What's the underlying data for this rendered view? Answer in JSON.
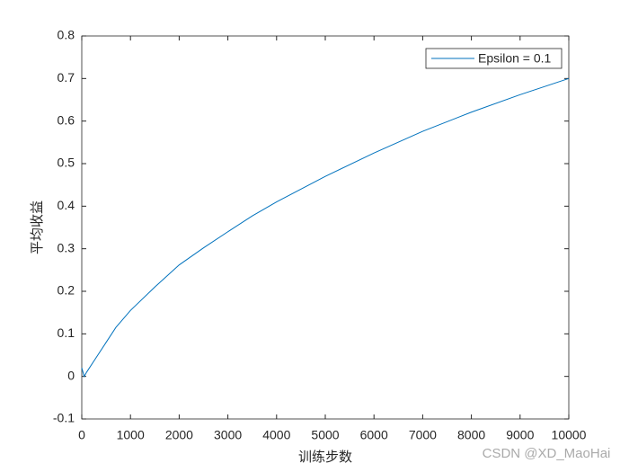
{
  "chart_data": {
    "type": "line",
    "x": [
      0,
      50,
      100,
      300,
      500,
      700,
      1000,
      1500,
      2000,
      2500,
      3000,
      3500,
      4000,
      5000,
      6000,
      7000,
      8000,
      9000,
      10000
    ],
    "series": [
      {
        "name": "Epsilon = 0.1",
        "color": "#0072bd",
        "values": [
          0.02,
          0.0,
          0.01,
          0.045,
          0.08,
          0.115,
          0.155,
          0.21,
          0.262,
          0.302,
          0.34,
          0.377,
          0.41,
          0.47,
          0.525,
          0.576,
          0.621,
          0.662,
          0.7
        ]
      }
    ],
    "xlabel": "训练步数",
    "ylabel": "平均收益",
    "xlim": [
      0,
      10000
    ],
    "xticks": [
      0,
      1000,
      2000,
      3000,
      4000,
      5000,
      6000,
      7000,
      8000,
      9000,
      10000
    ],
    "ylim": [
      -0.1,
      0.8
    ],
    "yticks": [
      -0.1,
      0,
      0.1,
      0.2,
      0.3,
      0.4,
      0.5,
      0.6,
      0.7,
      0.8
    ],
    "grid": false,
    "legend": "top-right"
  },
  "watermark": "CSDN @XD_MaoHai"
}
